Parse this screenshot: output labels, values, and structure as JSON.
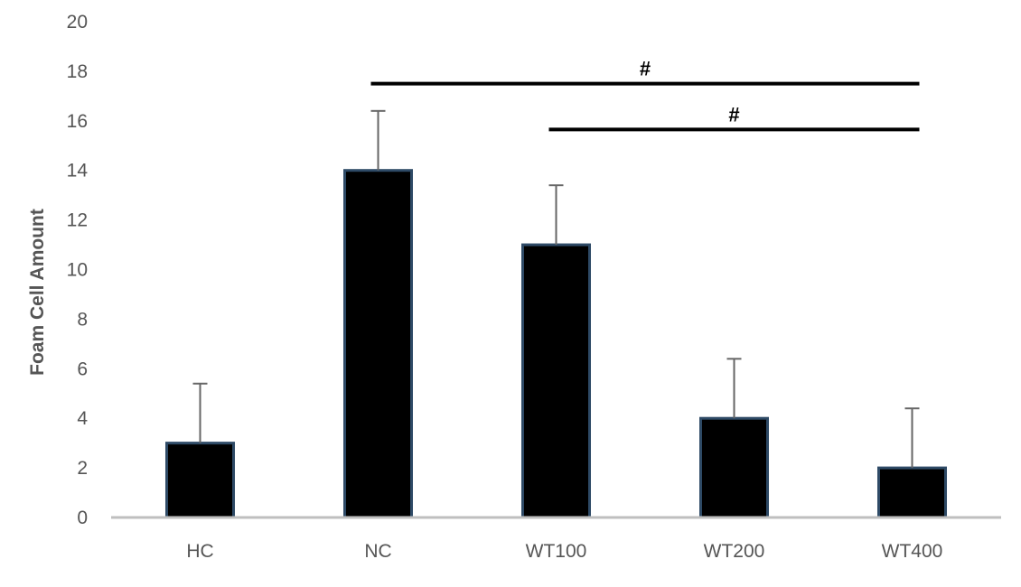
{
  "chart_data": {
    "type": "bar",
    "title": "",
    "xlabel": "",
    "ylabel": "Foam Cell Amount",
    "categories": [
      "HC",
      "NC",
      "WT100",
      "WT200",
      "WT400"
    ],
    "values": [
      3,
      14,
      11,
      4,
      2
    ],
    "error_plus": [
      2.4,
      2.4,
      2.4,
      2.4,
      2.4
    ],
    "ylim": [
      0,
      20
    ],
    "yticks": [
      0,
      2,
      4,
      6,
      8,
      10,
      12,
      14,
      16,
      18,
      20
    ],
    "grid": false,
    "legend": "none",
    "bar_color": "#000000",
    "bar_edge_color": "#2e4a66",
    "annotations": [
      {
        "label": "#",
        "from": "NC",
        "to": "WT400",
        "y": 17.5
      },
      {
        "label": "#",
        "from": "WT100",
        "to": "WT400",
        "y": 15.65
      }
    ]
  }
}
